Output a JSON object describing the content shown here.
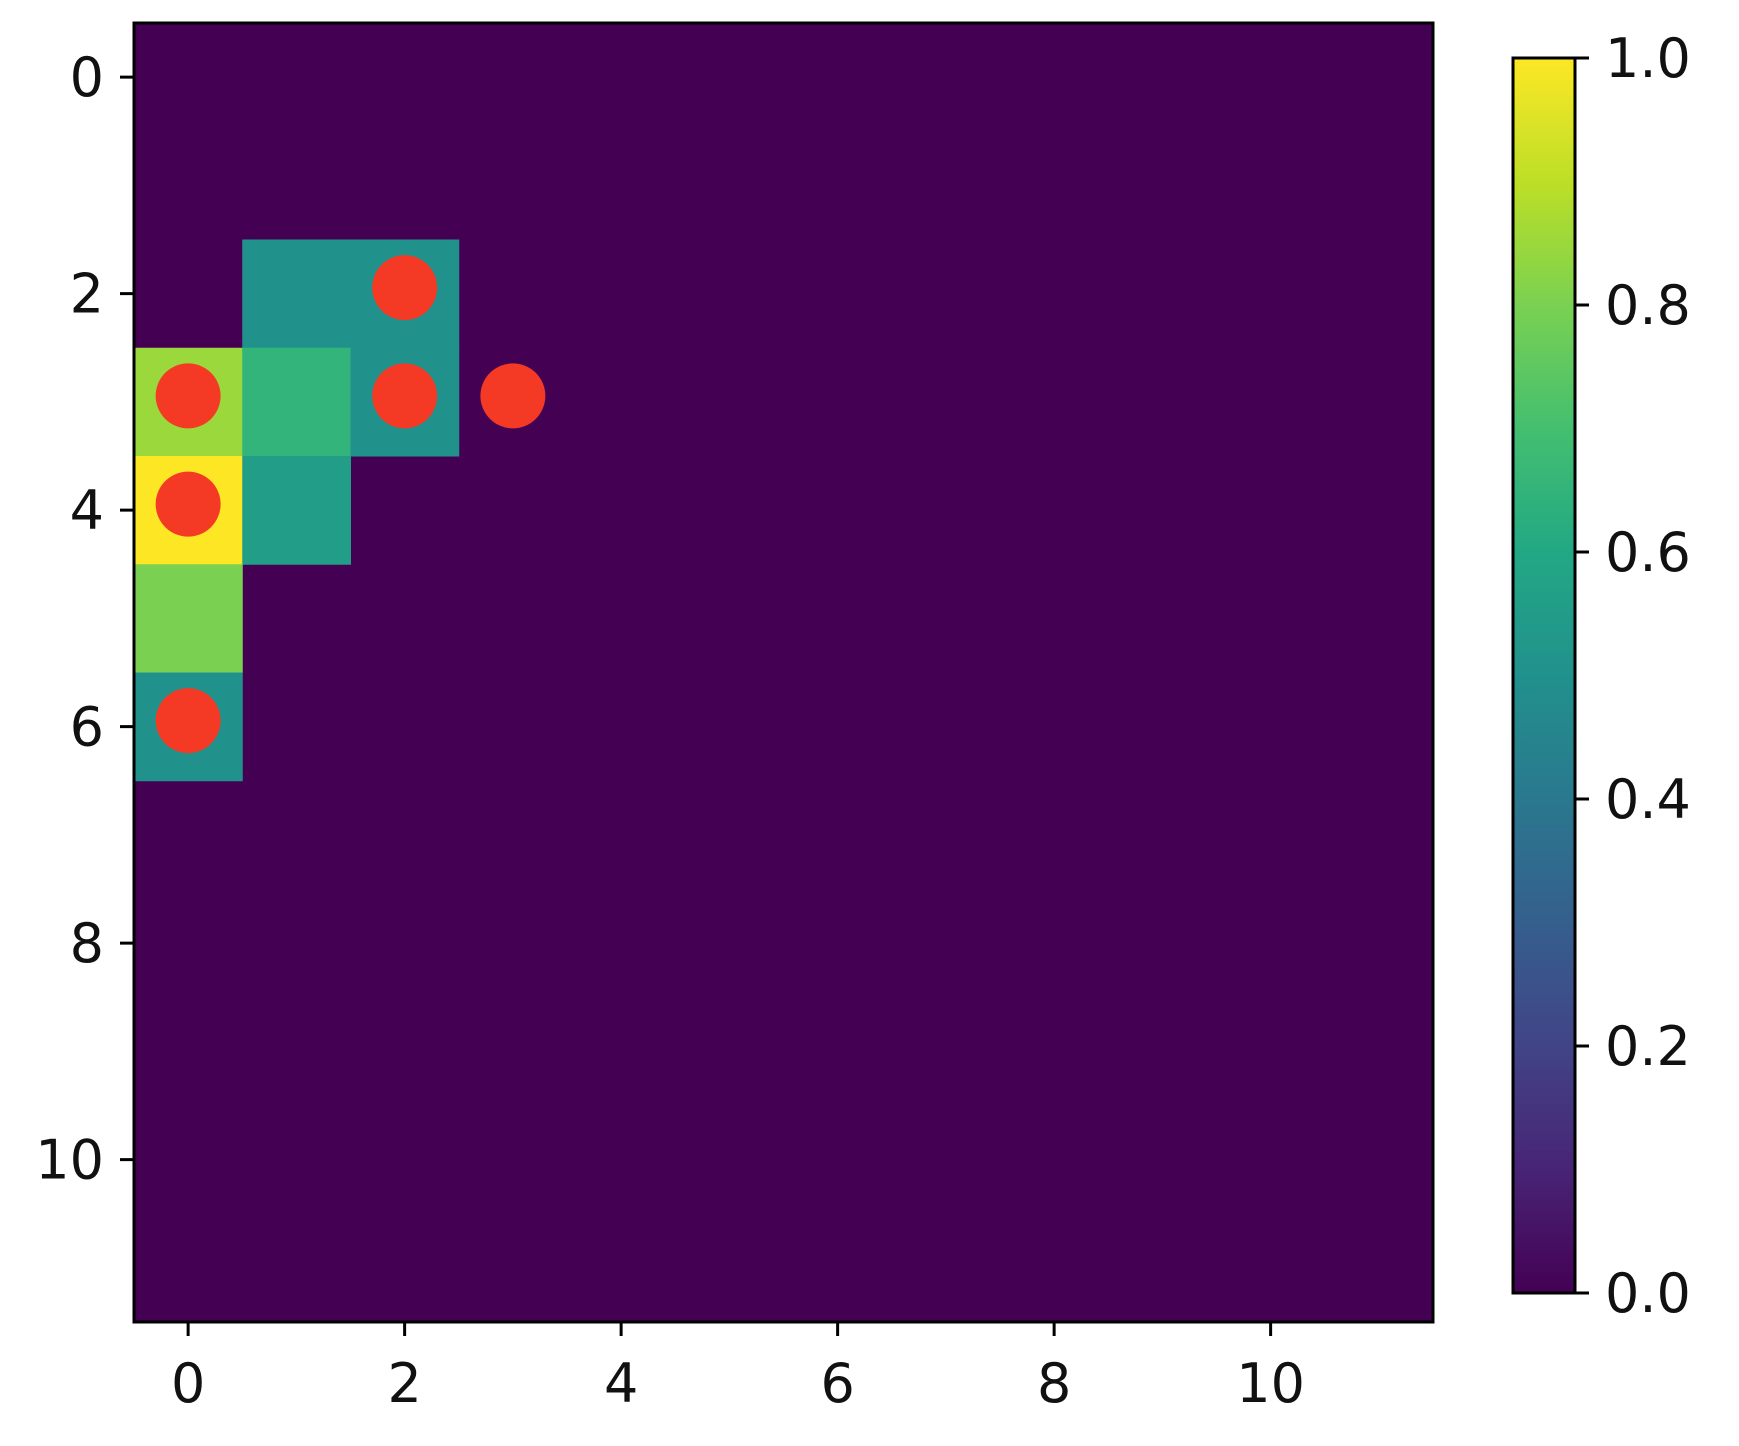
{
  "chart_data": {
    "type": "heatmap",
    "title": "",
    "xlabel": "",
    "ylabel": "",
    "grid": false,
    "rows": 12,
    "cols": 12,
    "x_ticks": [
      0,
      2,
      4,
      6,
      8,
      10
    ],
    "y_ticks": [
      0,
      2,
      4,
      6,
      8,
      10
    ],
    "x_tick_labels": [
      "0",
      "2",
      "4",
      "6",
      "8",
      "10"
    ],
    "y_tick_labels": [
      "0",
      "2",
      "4",
      "6",
      "8",
      "10"
    ],
    "y_axis_inverted": true,
    "colormap": "viridis",
    "color_range": [
      0.0,
      1.0
    ],
    "default_value": 0.0,
    "cells": [
      {
        "row": 2,
        "col": 1,
        "value": 0.5
      },
      {
        "row": 2,
        "col": 2,
        "value": 0.5
      },
      {
        "row": 3,
        "col": 0,
        "value": 0.85
      },
      {
        "row": 3,
        "col": 1,
        "value": 0.65
      },
      {
        "row": 3,
        "col": 2,
        "value": 0.5
      },
      {
        "row": 4,
        "col": 0,
        "value": 1.0
      },
      {
        "row": 4,
        "col": 1,
        "value": 0.55
      },
      {
        "row": 5,
        "col": 0,
        "value": 0.8
      },
      {
        "row": 6,
        "col": 0,
        "value": 0.5
      }
    ],
    "markers": {
      "color": "#f43a24",
      "points": [
        {
          "row": 2,
          "col": 2
        },
        {
          "row": 3,
          "col": 0
        },
        {
          "row": 3,
          "col": 2
        },
        {
          "row": 3,
          "col": 3
        },
        {
          "row": 4,
          "col": 0
        },
        {
          "row": 6,
          "col": 0
        }
      ]
    },
    "colorbar": {
      "range": [
        0.0,
        1.0
      ],
      "ticks": [
        0.0,
        0.2,
        0.4,
        0.6,
        0.8,
        1.0
      ],
      "tick_labels": [
        "0.0",
        "0.2",
        "0.4",
        "0.6",
        "0.8",
        "1.0"
      ]
    }
  }
}
